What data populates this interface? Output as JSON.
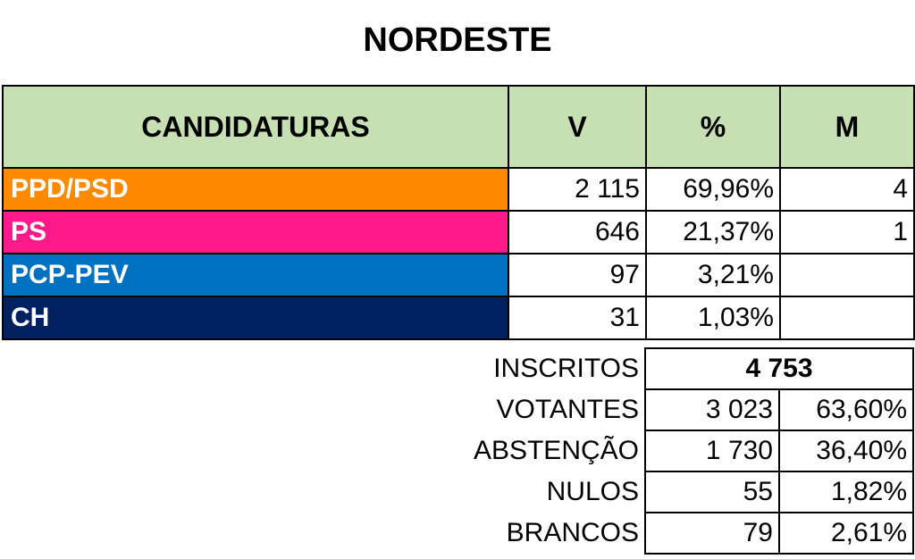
{
  "title": "NORDESTE",
  "headers": {
    "candidaturas": "CANDIDATURAS",
    "votes": "V",
    "percent": "%",
    "mandates": "M"
  },
  "parties": [
    {
      "name": "PPD/PSD",
      "votes": "2 115",
      "percent": "69,96%",
      "mandates": "4",
      "color": "#ff8a00"
    },
    {
      "name": "PS",
      "votes": "646",
      "percent": "21,37%",
      "mandates": "1",
      "color": "#ff1a8c"
    },
    {
      "name": "PCP-PEV",
      "votes": "97",
      "percent": "3,21%",
      "mandates": "",
      "color": "#0070c0"
    },
    {
      "name": "CH",
      "votes": "31",
      "percent": "1,03%",
      "mandates": "",
      "color": "#002060"
    }
  ],
  "stats": {
    "inscritos": {
      "label": "INSCRITOS",
      "value": "4 753"
    },
    "votantes": {
      "label": "VOTANTES",
      "value": "3 023",
      "percent": "63,60%"
    },
    "abstencao": {
      "label": "ABSTENÇÃO",
      "value": "1 730",
      "percent": "36,40%"
    },
    "nulos": {
      "label": "NULOS",
      "value": "55",
      "percent": "1,82%"
    },
    "brancos": {
      "label": "BRANCOS",
      "value": "79",
      "percent": "2,61%"
    }
  },
  "colors": {
    "header_bg": "#c6e0b4"
  }
}
